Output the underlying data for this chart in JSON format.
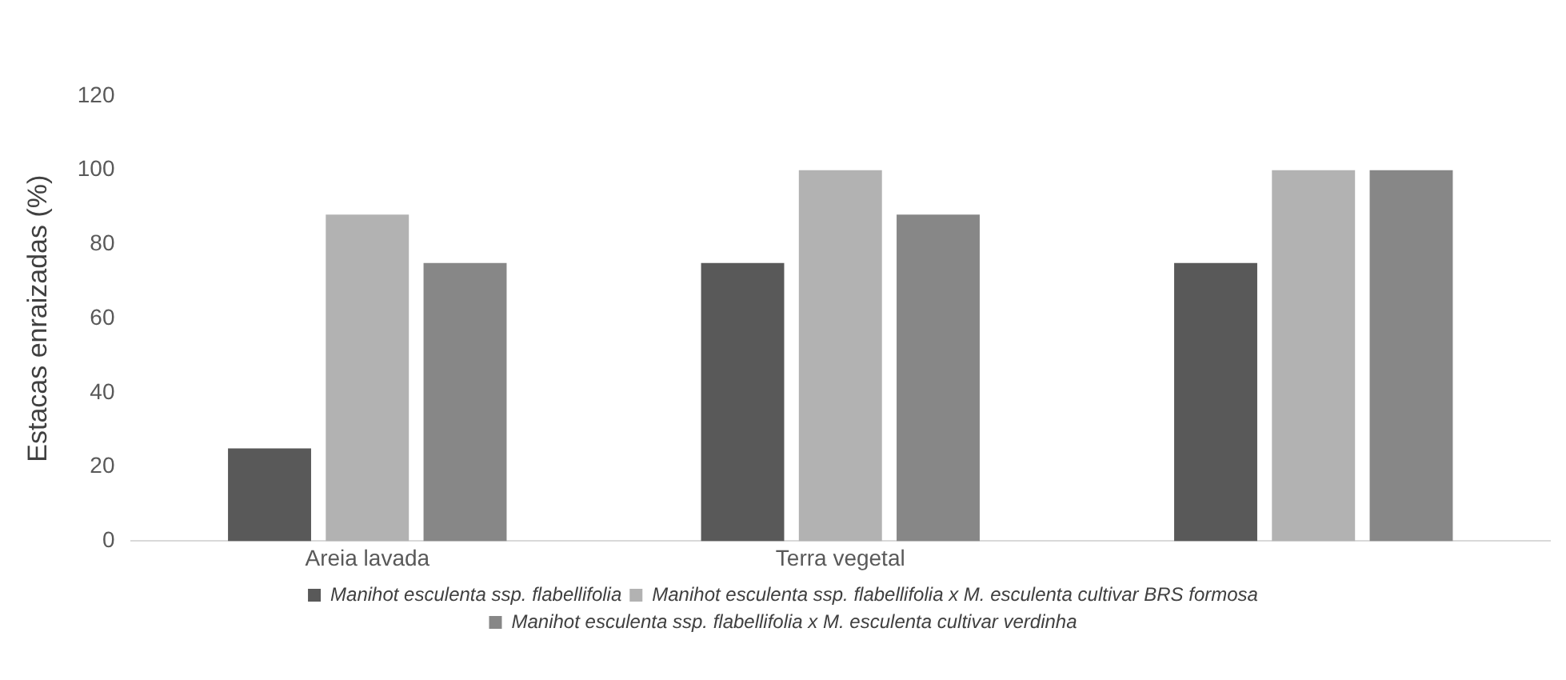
{
  "chart_data": {
    "type": "bar",
    "ylabel": "Estacas enraizadas (%)",
    "categories": [
      "Areia lavada",
      "Terra vegetal",
      null
    ],
    "series": [
      {
        "name": "Manihot esculenta ssp. flabellifolia",
        "color": "#595959",
        "values": [
          25,
          75,
          75
        ]
      },
      {
        "name": "Manihot esculenta ssp. flabellifolia x M. esculenta cultivar BRS formosa",
        "color": "#b2b2b2",
        "values": [
          88,
          100,
          100
        ]
      },
      {
        "name": "Manihot esculenta ssp. flabellifolia x M. esculenta cultivar verdinha",
        "color": "#878787",
        "values": [
          75,
          88,
          100
        ]
      }
    ],
    "ylim": [
      0,
      120
    ],
    "yticks": [
      0,
      20,
      40,
      60,
      80,
      100,
      120
    ],
    "grid": false,
    "legend": "bottom"
  }
}
